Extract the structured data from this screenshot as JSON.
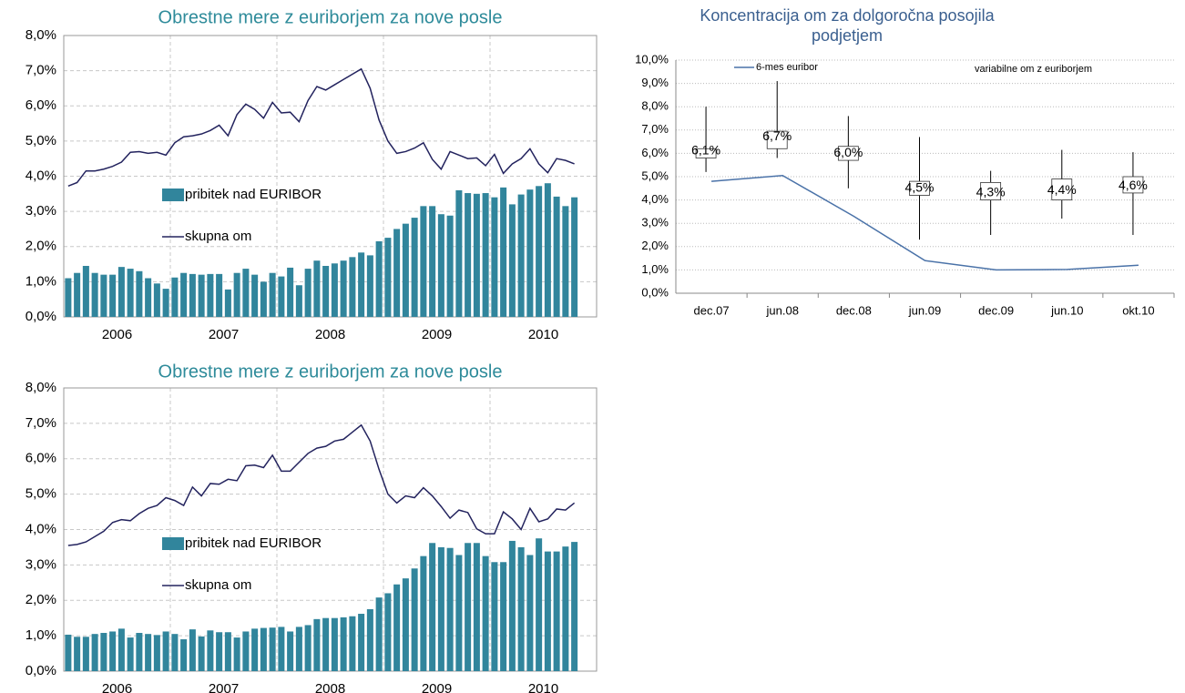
{
  "chart_data": [
    {
      "type": "combo",
      "title": "Obrestne mere z euriborjem za nove posle",
      "categories": [
        null,
        null,
        null,
        null,
        null,
        "2006",
        null,
        null,
        null,
        null,
        null,
        null,
        null,
        null,
        null,
        null,
        null,
        "2007",
        null,
        null,
        null,
        null,
        null,
        null,
        null,
        null,
        null,
        null,
        null,
        "2008",
        null,
        null,
        null,
        null,
        null,
        null,
        null,
        null,
        null,
        null,
        null,
        "2009",
        null,
        null,
        null,
        null,
        null,
        null,
        null,
        null,
        null,
        null,
        null,
        "2010",
        null,
        null,
        null,
        null
      ],
      "series": [
        {
          "name": "pribitek nad EURIBOR",
          "type": "bar",
          "color": "#31859c",
          "values": [
            1.1,
            1.25,
            1.45,
            1.25,
            1.2,
            1.2,
            1.42,
            1.37,
            1.3,
            1.1,
            0.95,
            0.8,
            1.12,
            1.25,
            1.22,
            1.2,
            1.22,
            1.22,
            0.78,
            1.25,
            1.37,
            1.2,
            1.0,
            1.25,
            1.15,
            1.4,
            0.9,
            1.37,
            1.6,
            1.45,
            1.52,
            1.6,
            1.7,
            1.83,
            1.75,
            2.15,
            2.25,
            2.5,
            2.65,
            2.82,
            3.15,
            3.15,
            2.92,
            2.88,
            3.6,
            3.52,
            3.5,
            3.52,
            3.4,
            3.68,
            3.2,
            3.48,
            3.62,
            3.72,
            3.8,
            3.42,
            3.15,
            3.4
          ]
        },
        {
          "name": "skupna om",
          "type": "line",
          "color": "#23235e",
          "values": [
            3.72,
            3.82,
            4.15,
            4.15,
            4.2,
            4.28,
            4.4,
            4.68,
            4.7,
            4.65,
            4.68,
            4.6,
            4.95,
            5.12,
            5.15,
            5.2,
            5.3,
            5.45,
            5.15,
            5.75,
            6.05,
            5.9,
            5.65,
            6.1,
            5.8,
            5.82,
            5.55,
            6.15,
            6.55,
            6.45,
            6.6,
            6.75,
            6.9,
            7.05,
            6.5,
            5.6,
            5.0,
            4.65,
            4.7,
            4.8,
            4.95,
            4.48,
            4.2,
            4.7,
            4.6,
            4.5,
            4.52,
            4.3,
            4.62,
            4.08,
            4.35,
            4.5,
            4.78,
            4.35,
            4.1,
            4.5,
            4.45,
            4.35
          ]
        }
      ],
      "ylim": [
        0,
        8
      ],
      "yticks": [
        {
          "value": 0,
          "label": "0,0%"
        },
        {
          "value": 1,
          "label": "1,0%"
        },
        {
          "value": 2,
          "label": "2,0%"
        },
        {
          "value": 3,
          "label": "3,0%"
        },
        {
          "value": 4,
          "label": "4,0%"
        },
        {
          "value": 5,
          "label": "5,0%"
        },
        {
          "value": 6,
          "label": "6,0%"
        },
        {
          "value": 7,
          "label": "7,0%"
        },
        {
          "value": 8,
          "label": "8,0%"
        }
      ],
      "grid": true
    },
    {
      "type": "box",
      "title": "Koncentracija om za dolgoročna posojila podjetjem",
      "categories": [
        "dec.07",
        "jun.08",
        "dec.08",
        "jun.09",
        "dec.09",
        "jun.10",
        "okt.10"
      ],
      "series": [
        {
          "name": "6-mes euribor",
          "type": "line",
          "color": "#4a72a8",
          "values": [
            4.8,
            5.05,
            3.3,
            1.4,
            1.0,
            1.02,
            1.2
          ]
        },
        {
          "name": "variabilne om z euriborjem",
          "type": "box",
          "color": "#000000",
          "values": [
            6.1,
            6.7,
            6.0,
            4.5,
            4.3,
            4.4,
            4.6
          ],
          "value_labels": [
            "6,1%",
            "6,7%",
            "6,0%",
            "4,5%",
            "4,3%",
            "4,4%",
            "4,6%"
          ],
          "low": [
            5.2,
            5.8,
            4.5,
            2.3,
            2.5,
            3.2,
            2.5
          ],
          "q1": [
            5.8,
            6.2,
            5.7,
            4.2,
            4.0,
            4.0,
            4.3
          ],
          "q3": [
            6.2,
            6.95,
            6.3,
            4.8,
            4.75,
            4.9,
            5.0
          ],
          "high": [
            8.0,
            9.1,
            7.6,
            6.7,
            5.25,
            6.15,
            6.05
          ]
        }
      ],
      "ylim": [
        0,
        10
      ],
      "yticks": [
        {
          "value": 0,
          "label": "0,0%"
        },
        {
          "value": 1,
          "label": "1,0%"
        },
        {
          "value": 2,
          "label": "2,0%"
        },
        {
          "value": 3,
          "label": "3,0%"
        },
        {
          "value": 4,
          "label": "4,0%"
        },
        {
          "value": 5,
          "label": "5,0%"
        },
        {
          "value": 6,
          "label": "6,0%"
        },
        {
          "value": 7,
          "label": "7,0%"
        },
        {
          "value": 8,
          "label": "8,0%"
        },
        {
          "value": 9,
          "label": "9,0%"
        },
        {
          "value": 10,
          "label": "10,0%"
        }
      ],
      "grid": true
    },
    {
      "type": "combo",
      "title": "Obrestne mere z euriborjem za nove posle",
      "categories": [
        null,
        null,
        null,
        null,
        null,
        "2006",
        null,
        null,
        null,
        null,
        null,
        null,
        null,
        null,
        null,
        null,
        null,
        "2007",
        null,
        null,
        null,
        null,
        null,
        null,
        null,
        null,
        null,
        null,
        null,
        "2008",
        null,
        null,
        null,
        null,
        null,
        null,
        null,
        null,
        null,
        null,
        null,
        "2009",
        null,
        null,
        null,
        null,
        null,
        null,
        null,
        null,
        null,
        null,
        null,
        "2010",
        null,
        null,
        null,
        null
      ],
      "series": [
        {
          "name": "pribitek nad EURIBOR",
          "type": "bar",
          "color": "#31859c",
          "values": [
            1.03,
            0.97,
            0.97,
            1.05,
            1.08,
            1.12,
            1.2,
            0.95,
            1.08,
            1.05,
            1.02,
            1.12,
            1.05,
            0.9,
            1.18,
            0.98,
            1.15,
            1.1,
            1.1,
            0.95,
            1.12,
            1.2,
            1.22,
            1.23,
            1.25,
            1.12,
            1.25,
            1.3,
            1.47,
            1.5,
            1.5,
            1.52,
            1.55,
            1.62,
            1.75,
            2.08,
            2.2,
            2.45,
            2.62,
            2.9,
            3.25,
            3.62,
            3.5,
            3.48,
            3.28,
            3.62,
            3.62,
            3.25,
            3.08,
            3.08,
            3.68,
            3.5,
            3.28,
            3.75,
            3.38,
            3.38,
            3.52,
            3.65
          ]
        },
        {
          "name": "skupna om",
          "type": "line",
          "color": "#23235e",
          "values": [
            3.55,
            3.58,
            3.65,
            3.8,
            3.95,
            4.2,
            4.28,
            4.25,
            4.45,
            4.6,
            4.68,
            4.9,
            4.82,
            4.68,
            5.2,
            4.95,
            5.3,
            5.28,
            5.42,
            5.38,
            5.8,
            5.82,
            5.75,
            6.1,
            5.65,
            5.65,
            5.9,
            6.15,
            6.3,
            6.35,
            6.5,
            6.55,
            6.75,
            6.95,
            6.5,
            5.7,
            5.0,
            4.75,
            4.95,
            4.9,
            5.18,
            4.95,
            4.65,
            4.32,
            4.55,
            4.48,
            4.02,
            3.88,
            3.88,
            4.5,
            4.3,
            4.0,
            4.6,
            4.22,
            4.3,
            4.58,
            4.55,
            4.75
          ]
        }
      ],
      "ylim": [
        0,
        8
      ],
      "yticks": [
        {
          "value": 0,
          "label": "0,0%"
        },
        {
          "value": 1,
          "label": "1,0%"
        },
        {
          "value": 2,
          "label": "2,0%"
        },
        {
          "value": 3,
          "label": "3,0%"
        },
        {
          "value": 4,
          "label": "4,0%"
        },
        {
          "value": 5,
          "label": "5,0%"
        },
        {
          "value": 6,
          "label": "6,0%"
        },
        {
          "value": 7,
          "label": "7,0%"
        },
        {
          "value": 8,
          "label": "8,0%"
        }
      ],
      "grid": true
    }
  ]
}
